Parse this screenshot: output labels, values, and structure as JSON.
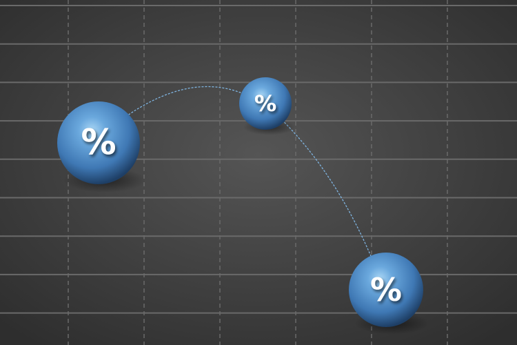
{
  "illustration": {
    "background_color": "#4a4a4a",
    "grid_color": "#6a6a6a",
    "sphere_color": "#4f8fcf",
    "curve_color": "#7fb4e0",
    "spheres": [
      {
        "symbol": "%",
        "size": "large"
      },
      {
        "symbol": "%",
        "size": "small"
      },
      {
        "symbol": "%",
        "size": "medium"
      }
    ]
  }
}
